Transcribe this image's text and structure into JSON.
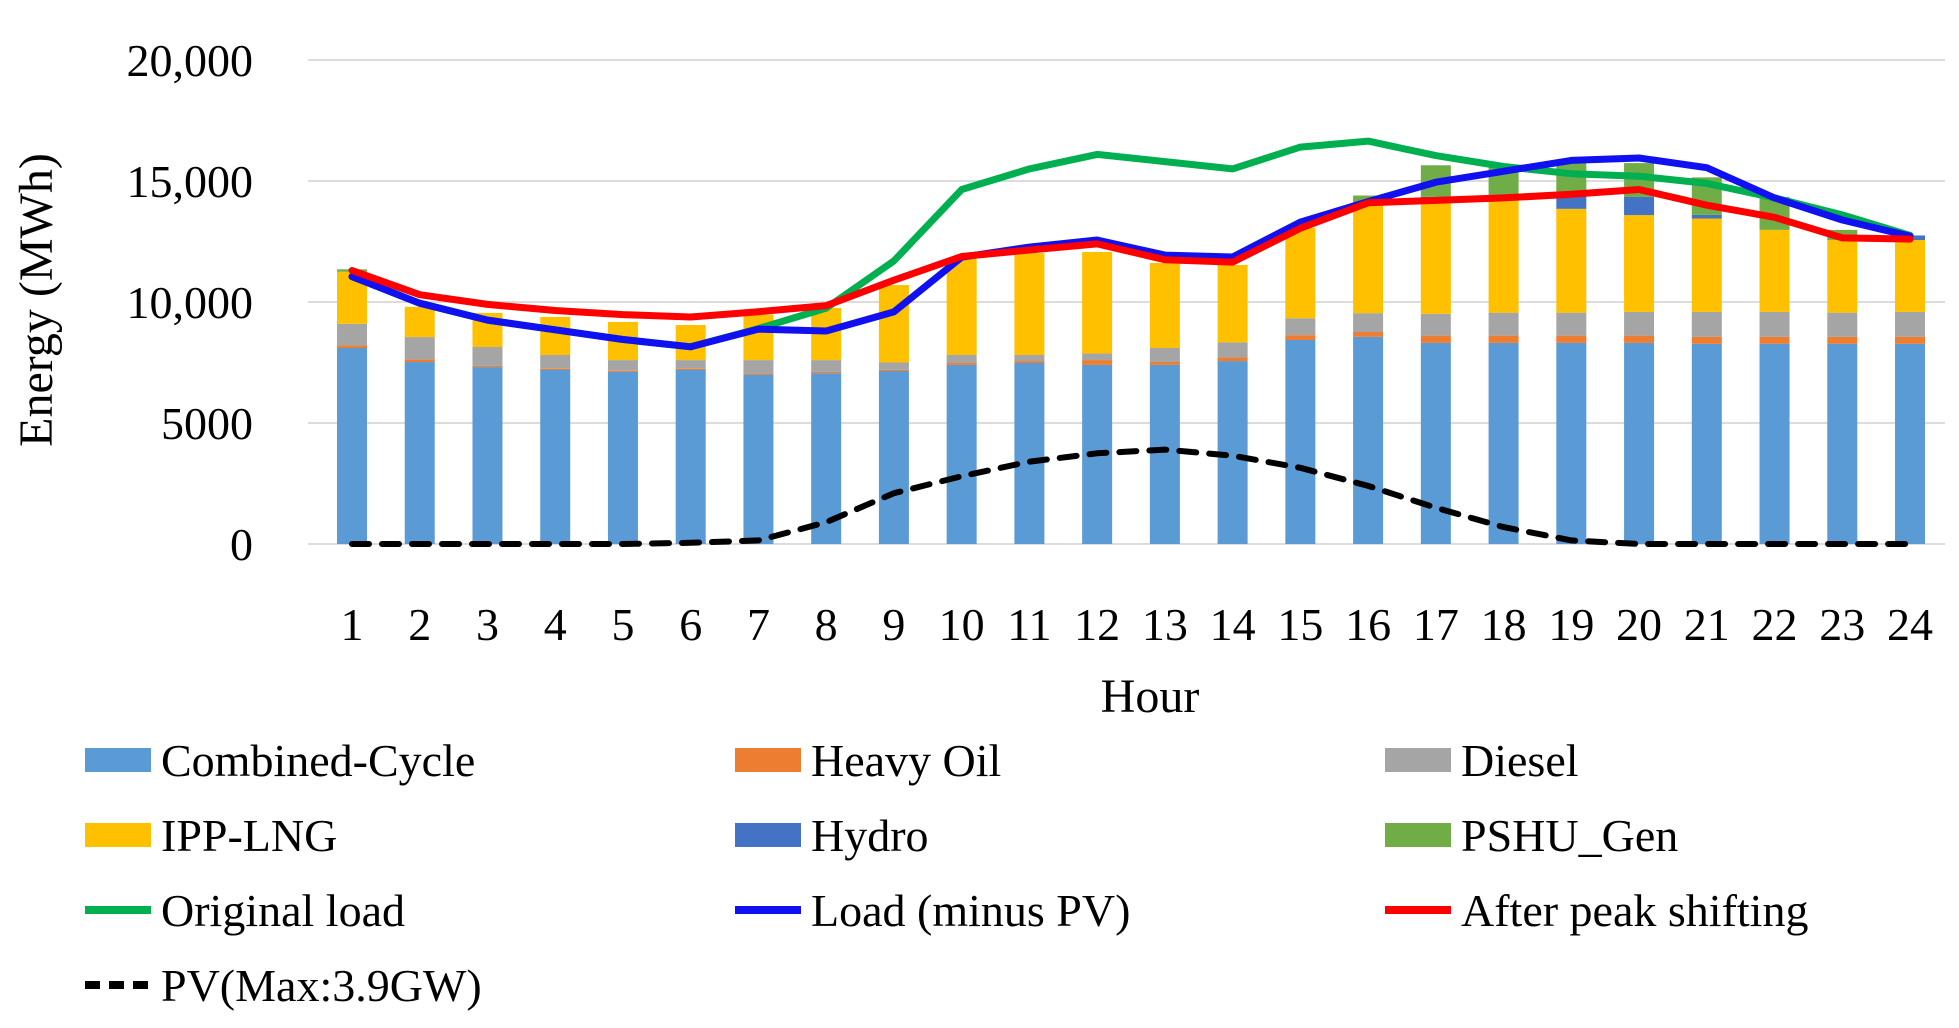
{
  "figure": {
    "background": "#FFFFFF",
    "axis_title_y": "Energy (MWh)",
    "axis_title_x": "Hour"
  },
  "chart_data": {
    "type": "combo-stacked-bar-line",
    "title": "",
    "xlabel": "Hour",
    "ylabel": "Energy (MWh)",
    "grid": true,
    "legend_position": "bottom",
    "ylim": [
      0,
      20000
    ],
    "hours": [
      1,
      2,
      3,
      4,
      5,
      6,
      7,
      8,
      9,
      10,
      11,
      12,
      13,
      14,
      15,
      16,
      17,
      18,
      19,
      20,
      21,
      22,
      23,
      24
    ],
    "y_ticks": [
      {
        "value": 0,
        "label": "0"
      },
      {
        "value": 5000,
        "label": "5000"
      },
      {
        "value": 10000,
        "label": "10,000"
      },
      {
        "value": 15000,
        "label": "15,000"
      },
      {
        "value": 20000,
        "label": "20,000"
      }
    ],
    "bar_series": [
      {
        "name": "Combined-Cycle",
        "color": "#5B9BD5",
        "values": [
          8100,
          7520,
          7310,
          7190,
          7110,
          7190,
          7000,
          7060,
          7150,
          7400,
          7480,
          7400,
          7400,
          7560,
          8430,
          8560,
          8310,
          8310,
          8310,
          8310,
          8270,
          8270,
          8270,
          8270
        ]
      },
      {
        "name": "Heavy Oil",
        "color": "#ED7D31",
        "values": [
          100,
          100,
          50,
          50,
          50,
          50,
          50,
          50,
          50,
          80,
          80,
          200,
          120,
          150,
          200,
          200,
          300,
          300,
          300,
          300,
          290,
          290,
          290,
          290
        ]
      },
      {
        "name": "Diesel",
        "color": "#A5A5A5",
        "values": [
          900,
          930,
          780,
          570,
          440,
          360,
          550,
          490,
          300,
          330,
          250,
          270,
          580,
          620,
          700,
          780,
          900,
          950,
          950,
          980,
          1030,
          1030,
          1000,
          1030
        ]
      },
      {
        "name": "IPP-LNG",
        "color": "#FFC000",
        "values": [
          2150,
          1250,
          1410,
          1570,
          1575,
          1450,
          1880,
          2150,
          3200,
          4000,
          4210,
          4200,
          3510,
          3200,
          3730,
          4560,
          4690,
          4690,
          4290,
          4000,
          3860,
          3390,
          3000,
          2970
        ]
      },
      {
        "name": "Hydro",
        "color": "#4472C4",
        "values": [
          0,
          0,
          0,
          0,
          0,
          0,
          0,
          0,
          0,
          0,
          0,
          0,
          0,
          0,
          0,
          0,
          150,
          150,
          600,
          750,
          150,
          0,
          0,
          190
        ]
      },
      {
        "name": "PSHU_Gen",
        "color": "#70AD47",
        "values": [
          100,
          0,
          0,
          0,
          0,
          0,
          0,
          0,
          0,
          0,
          0,
          0,
          0,
          0,
          0,
          300,
          1300,
          1250,
          1300,
          1400,
          1550,
          1360,
          420,
          0
        ]
      }
    ],
    "line_series": [
      {
        "name": "Original load",
        "color": "#00B050",
        "dash": false,
        "values": [
          11050,
          9950,
          9250,
          8850,
          8450,
          8150,
          8900,
          9750,
          11700,
          14650,
          15500,
          16100,
          15800,
          15500,
          16400,
          16650,
          16050,
          15600,
          15300,
          15200,
          14900,
          14300,
          13600,
          12750
        ]
      },
      {
        "name": "Load (minus PV)",
        "color": "#1010F0",
        "dash": false,
        "values": [
          11050,
          9950,
          9250,
          8850,
          8450,
          8150,
          8880,
          8800,
          9590,
          11850,
          12270,
          12560,
          11940,
          11860,
          13300,
          14150,
          14950,
          15400,
          15850,
          15950,
          15550,
          14300,
          13390,
          12720
        ]
      },
      {
        "name": "After peak shifting",
        "color": "#FF0000",
        "dash": false,
        "values": [
          11300,
          10300,
          9900,
          9650,
          9480,
          9380,
          9600,
          9850,
          10900,
          11880,
          12150,
          12400,
          11750,
          11650,
          13050,
          14100,
          14200,
          14300,
          14450,
          14650,
          14000,
          13500,
          12650,
          12600
        ]
      },
      {
        "name": "PV(Max:3.9GW)",
        "color": "#000000",
        "dash": true,
        "values": [
          0,
          0,
          0,
          0,
          0,
          50,
          150,
          900,
          2100,
          2800,
          3400,
          3750,
          3900,
          3650,
          3150,
          2400,
          1500,
          700,
          150,
          0,
          0,
          0,
          0,
          0
        ]
      }
    ]
  }
}
